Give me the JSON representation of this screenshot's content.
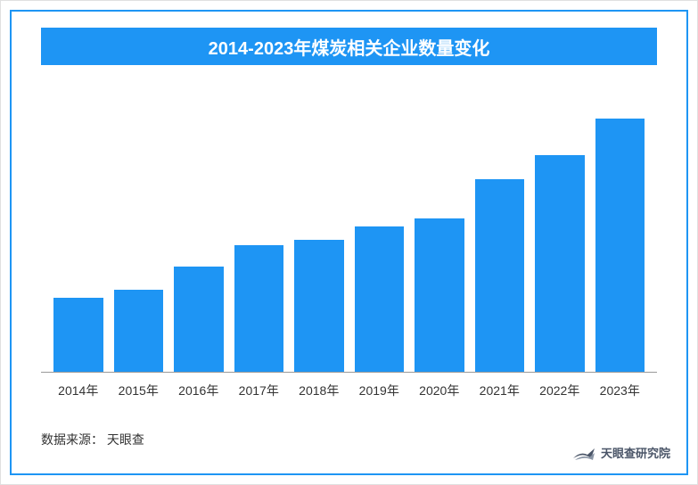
{
  "chart": {
    "type": "bar",
    "title": "2014-2023年煤炭相关企业数量变化",
    "title_bg_color": "#1e95f4",
    "title_text_color": "#ffffff",
    "title_fontsize": 20,
    "categories": [
      "2014年",
      "2015年",
      "2016年",
      "2017年",
      "2018年",
      "2019年",
      "2020年",
      "2021年",
      "2022年",
      "2023年"
    ],
    "values": [
      28,
      31,
      40,
      48,
      50,
      55,
      58,
      73,
      82,
      96
    ],
    "max_value": 100,
    "bar_color": "#1e95f4",
    "x_label_fontsize": 14,
    "x_label_color": "#333333",
    "axis_color": "#999999",
    "frame_border_color": "#1e95f4",
    "background_color": "#ffffff"
  },
  "source": {
    "label": "数据来源：",
    "value": "天眼查",
    "fontsize": 14,
    "color": "#333333"
  },
  "logo": {
    "text": "天眼查研究院",
    "text_color": "#4a5568",
    "fontsize": 13,
    "icon_color": "#4a5568"
  }
}
